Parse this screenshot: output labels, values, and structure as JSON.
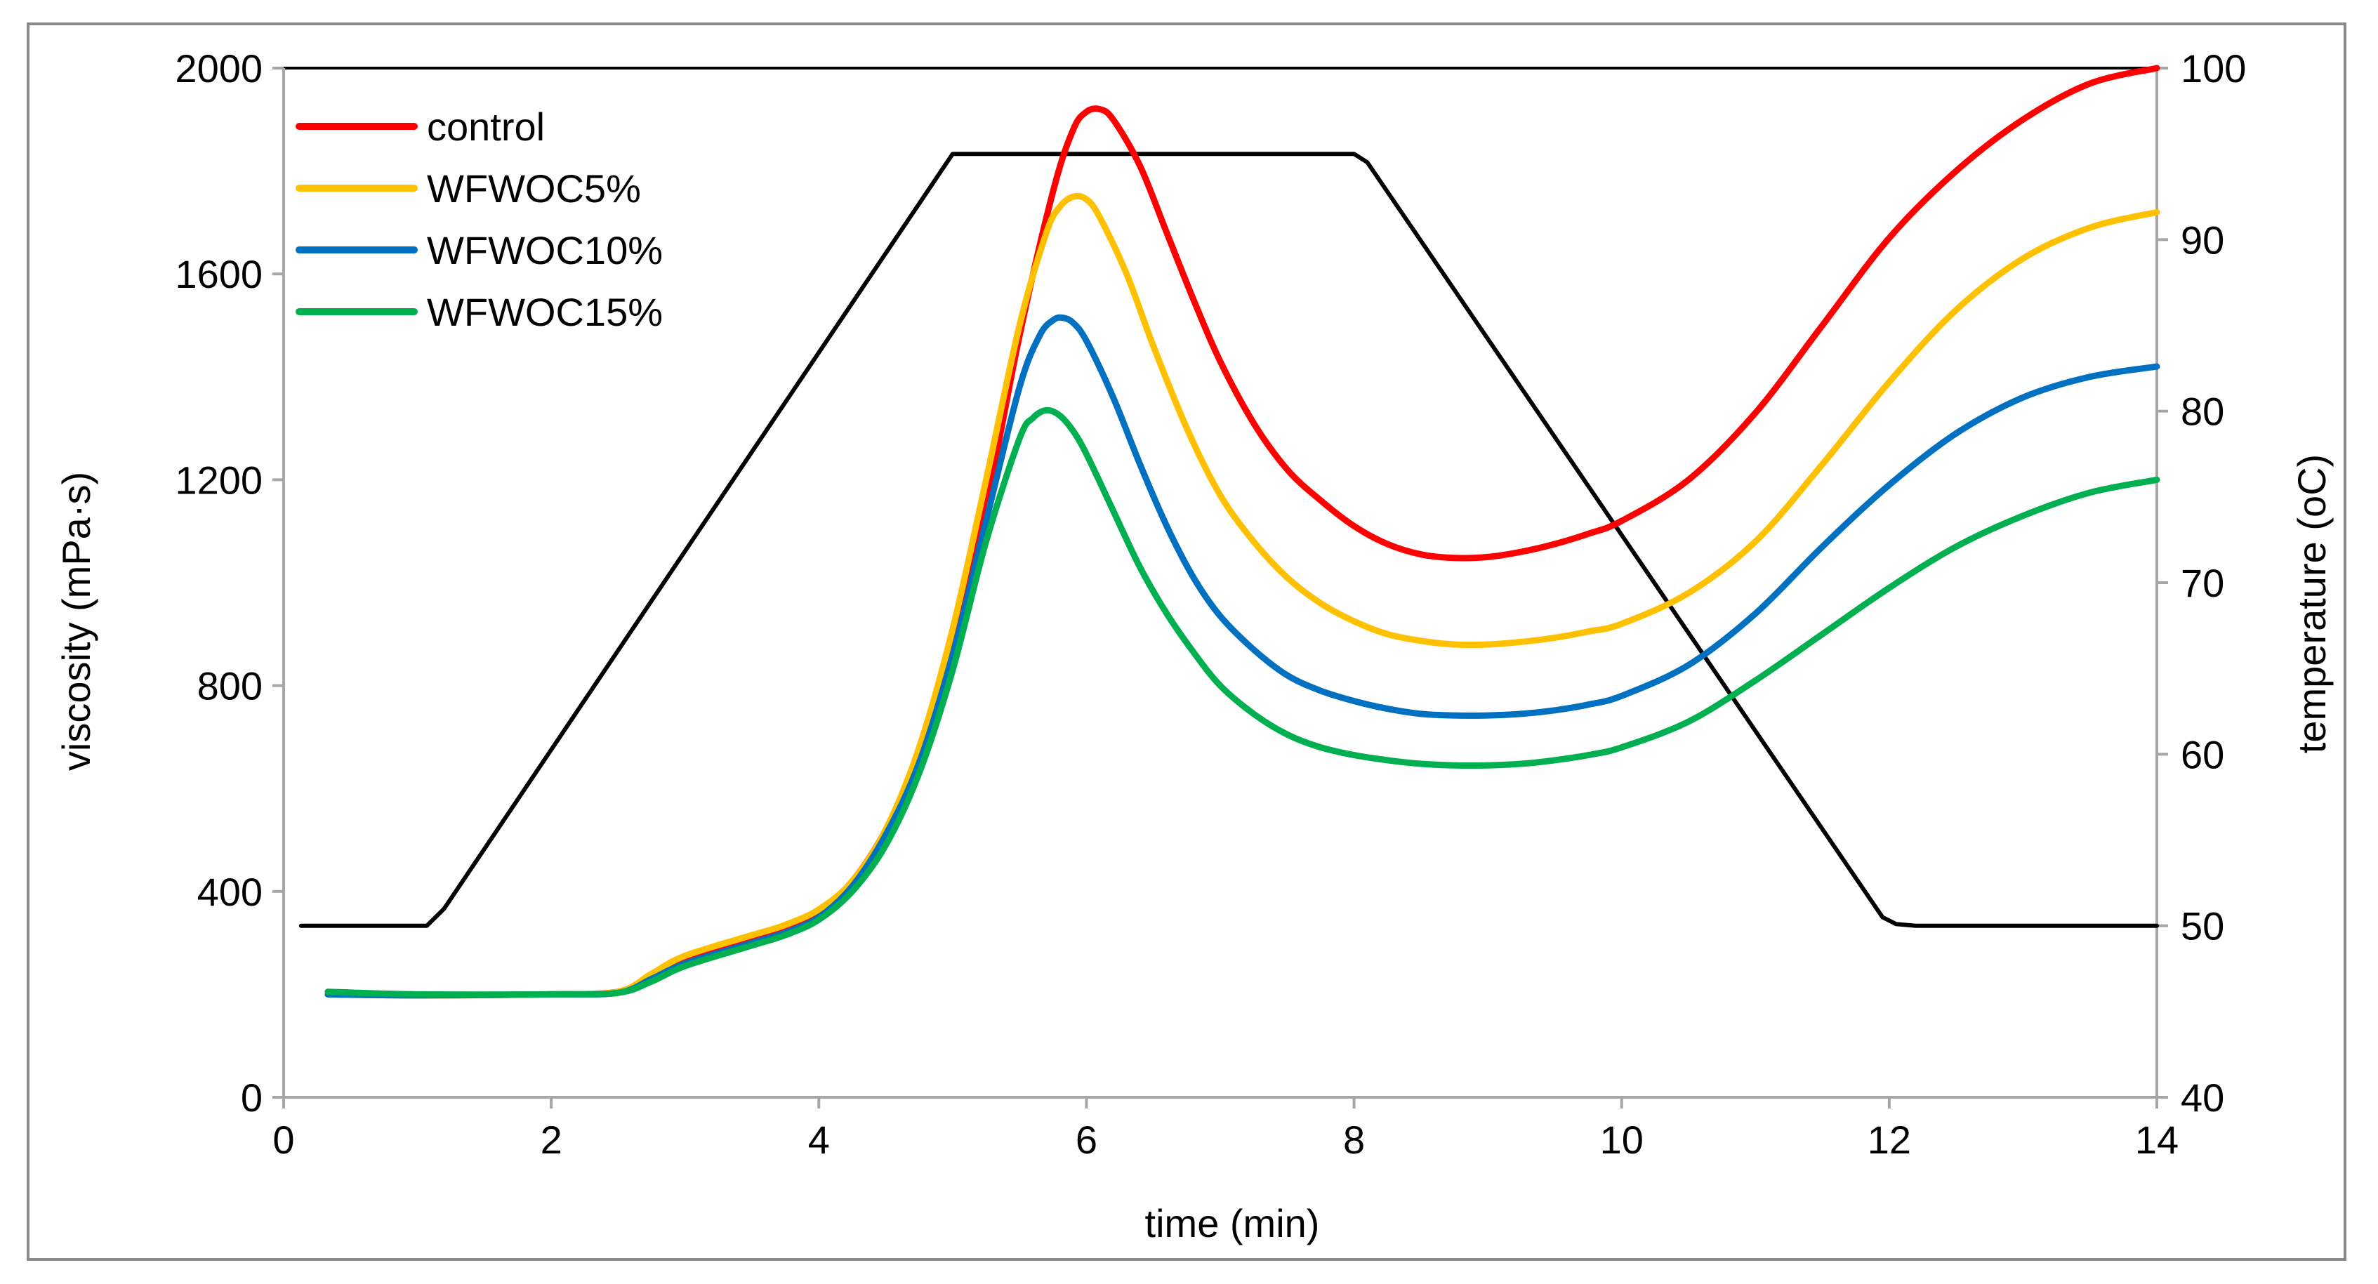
{
  "chart_data": {
    "type": "line",
    "title": "",
    "xlabel": "time (min)",
    "ylabel": "viscosity (mPa·s)",
    "y2label": "temperature (oC)",
    "xlim": [
      0,
      14
    ],
    "ylim": [
      0,
      2000
    ],
    "y2lim": [
      40,
      100
    ],
    "xticks": [
      0,
      2,
      4,
      6,
      8,
      10,
      12,
      14
    ],
    "yticks": [
      0,
      400,
      800,
      1200,
      1600,
      2000
    ],
    "y2ticks": [
      40,
      50,
      60,
      70,
      80,
      90,
      100
    ],
    "legend_position": "top-left",
    "series": [
      {
        "name": "control",
        "color": "#ff0000",
        "axis": "left",
        "x": [
          0.33,
          1.0,
          2.0,
          2.5,
          2.75,
          3.0,
          3.5,
          3.75,
          4.0,
          4.25,
          4.5,
          4.75,
          5.0,
          5.25,
          5.5,
          5.75,
          5.9,
          6.0,
          6.1,
          6.2,
          6.4,
          6.6,
          6.8,
          7.0,
          7.25,
          7.5,
          7.75,
          8.0,
          8.25,
          8.5,
          8.75,
          9.0,
          9.25,
          9.5,
          9.75,
          10.0,
          10.5,
          11.0,
          11.5,
          12.0,
          12.5,
          13.0,
          13.5,
          14.0
        ],
        "values": [
          200,
          198,
          200,
          205,
          235,
          270,
          310,
          330,
          360,
          420,
          520,
          670,
          880,
          1150,
          1480,
          1760,
          1880,
          1915,
          1920,
          1900,
          1810,
          1680,
          1550,
          1430,
          1310,
          1220,
          1160,
          1110,
          1075,
          1055,
          1048,
          1050,
          1060,
          1075,
          1095,
          1120,
          1200,
          1330,
          1500,
          1670,
          1800,
          1900,
          1970,
          2000
        ]
      },
      {
        "name": "WFWOC5%",
        "color": "#ffc000",
        "axis": "left",
        "x": [
          0.33,
          1.0,
          2.0,
          2.5,
          2.75,
          3.0,
          3.5,
          3.75,
          4.0,
          4.25,
          4.5,
          4.75,
          5.0,
          5.25,
          5.5,
          5.7,
          5.8,
          5.9,
          6.0,
          6.1,
          6.3,
          6.5,
          6.75,
          7.0,
          7.25,
          7.5,
          7.75,
          8.0,
          8.25,
          8.5,
          8.75,
          9.0,
          9.25,
          9.5,
          9.75,
          10.0,
          10.5,
          11.0,
          11.5,
          12.0,
          12.5,
          13.0,
          13.5,
          14.0
        ],
        "values": [
          200,
          198,
          200,
          205,
          240,
          275,
          315,
          335,
          365,
          420,
          520,
          680,
          910,
          1200,
          1500,
          1680,
          1730,
          1750,
          1745,
          1710,
          1600,
          1460,
          1300,
          1170,
          1080,
          1010,
          960,
          925,
          900,
          887,
          880,
          880,
          885,
          893,
          905,
          920,
          980,
          1080,
          1230,
          1390,
          1530,
          1630,
          1690,
          1720
        ]
      },
      {
        "name": "WFWOC10%",
        "color": "#0070c0",
        "axis": "left",
        "x": [
          0.33,
          1.0,
          2.0,
          2.5,
          2.75,
          3.0,
          3.5,
          3.75,
          4.0,
          4.25,
          4.5,
          4.75,
          5.0,
          5.25,
          5.5,
          5.65,
          5.75,
          5.82,
          5.9,
          6.0,
          6.2,
          6.4,
          6.6,
          6.8,
          7.0,
          7.25,
          7.5,
          7.75,
          8.0,
          8.25,
          8.5,
          8.75,
          9.0,
          9.25,
          9.5,
          9.75,
          10.0,
          10.5,
          11.0,
          11.5,
          12.0,
          12.5,
          13.0,
          13.5,
          14.0
        ],
        "values": [
          200,
          198,
          200,
          203,
          230,
          260,
          300,
          320,
          350,
          410,
          510,
          650,
          860,
          1120,
          1380,
          1480,
          1510,
          1515,
          1505,
          1470,
          1360,
          1230,
          1110,
          1010,
          935,
          870,
          820,
          790,
          770,
          755,
          745,
          742,
          742,
          745,
          752,
          763,
          780,
          840,
          940,
          1070,
          1190,
          1290,
          1360,
          1400,
          1420
        ]
      },
      {
        "name": "WFWOC15%",
        "color": "#00b050",
        "axis": "left",
        "x": [
          0.33,
          1.0,
          2.0,
          2.5,
          2.75,
          3.0,
          3.5,
          3.75,
          4.0,
          4.25,
          4.5,
          4.75,
          5.0,
          5.25,
          5.5,
          5.6,
          5.7,
          5.8,
          5.9,
          6.0,
          6.2,
          6.4,
          6.6,
          6.8,
          7.0,
          7.25,
          7.5,
          7.75,
          8.0,
          8.25,
          8.5,
          8.75,
          9.0,
          9.25,
          9.5,
          9.75,
          10.0,
          10.5,
          11.0,
          11.5,
          12.0,
          12.5,
          13.0,
          13.5,
          14.0
        ],
        "values": [
          205,
          200,
          200,
          203,
          225,
          255,
          295,
          315,
          345,
          400,
          490,
          630,
          830,
          1080,
          1280,
          1320,
          1335,
          1325,
          1295,
          1250,
          1140,
          1030,
          940,
          865,
          800,
          745,
          705,
          680,
          665,
          655,
          648,
          645,
          645,
          648,
          655,
          665,
          680,
          730,
          810,
          900,
          990,
          1070,
          1130,
          1175,
          1200
        ]
      },
      {
        "name": "temperature",
        "color": "#000000",
        "axis": "right",
        "x": [
          0.13,
          1.07,
          1.2,
          5.0,
          5.05,
          8.0,
          8.1,
          11.95,
          12.05,
          12.2,
          14.0
        ],
        "values": [
          50,
          50,
          51,
          95,
          95,
          95,
          94.5,
          50.5,
          50.1,
          50,
          50
        ]
      }
    ]
  }
}
